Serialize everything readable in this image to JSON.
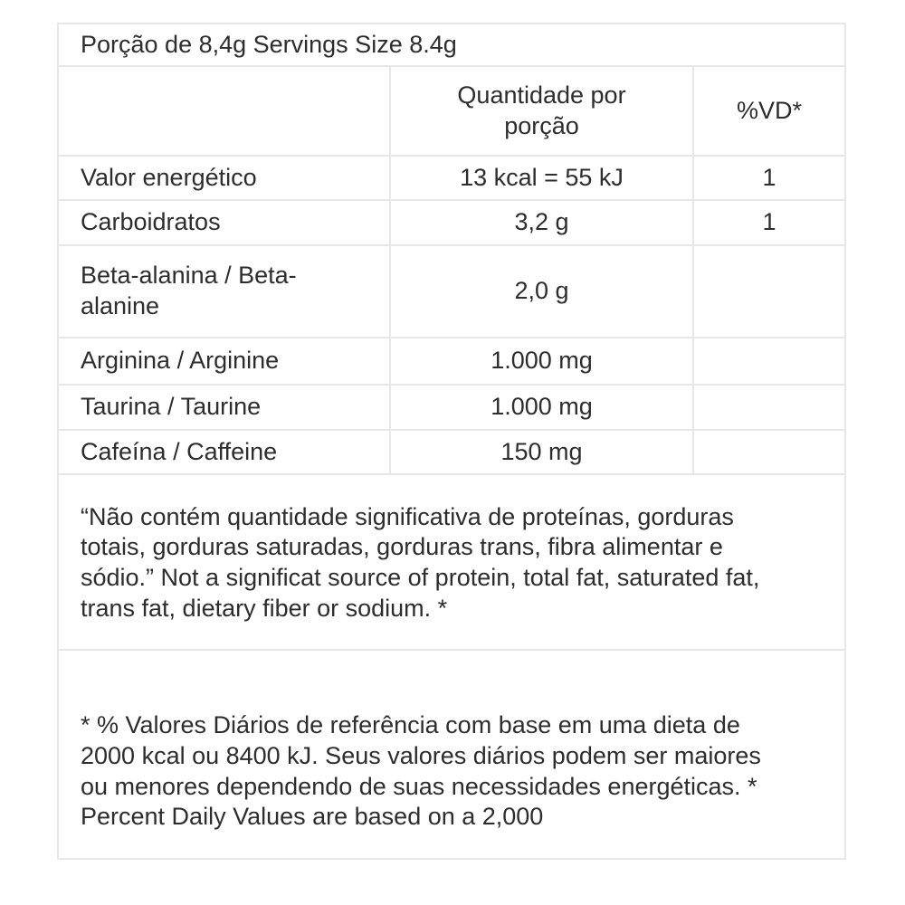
{
  "table": {
    "serving_title": "Porção de 8,4g Servings Size 8.4g",
    "header": {
      "name_col": "",
      "quantity_col": "Quantidade por\nporção",
      "vd_col": "%VD*"
    },
    "rows": [
      {
        "name": "Valor energético",
        "amount": "13 kcal = 55 kJ",
        "vd": "1"
      },
      {
        "name": "Carboidratos",
        "amount": "3,2 g",
        "vd": "1"
      },
      {
        "name": "Beta-alanina / Beta-\nalanine",
        "amount": "2,0 g",
        "vd": ""
      },
      {
        "name": "Arginina / Arginine",
        "amount": "1.000 mg",
        "vd": ""
      },
      {
        "name": "Taurina / Taurine",
        "amount": "1.000 mg",
        "vd": ""
      },
      {
        "name": "Cafeína / Caffeine",
        "amount": "150 mg",
        "vd": ""
      }
    ],
    "note_significant": "“Não contém quantidade significativa de proteínas, gorduras\ntotais, gorduras saturadas, gorduras trans, fibra alimentar e\nsódio.” Not a significat source of protein, total fat, saturated fat,\ntrans fat, dietary fiber or sodium. *",
    "note_daily_values": "* % Valores Diários de referência com base em uma dieta de\n2000 kcal ou 8400 kJ. Seus valores diários podem ser maiores\nou menores dependendo de suas necessidades energéticas. *\nPercent Daily Values are based on a 2,000"
  },
  "colors": {
    "background": "#ffffff",
    "text": "#2d2d2d",
    "border": "#e7e7e7"
  }
}
